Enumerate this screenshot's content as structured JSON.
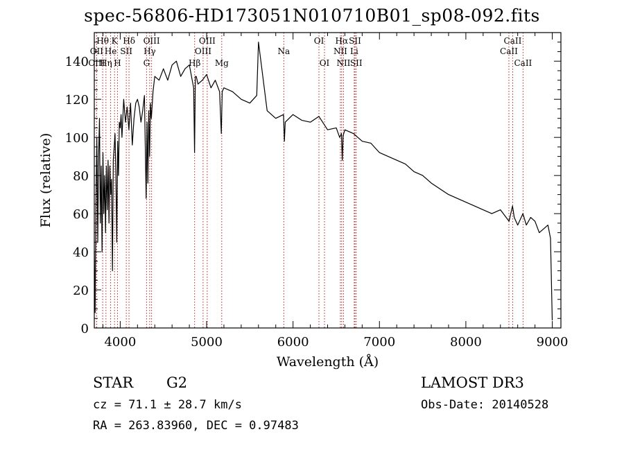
{
  "header": {
    "title": "spec-56806-HD173051N010710B01_sp08-092.fits"
  },
  "info": {
    "object_type": "STAR",
    "spectral_class": "G2",
    "survey": "LAMOST DR3",
    "cz": "cz = 71.1 ± 28.7 km/s",
    "obs_date": "Obs-Date: 20140528",
    "radec": "RA = 263.83960, DEC =    0.97483"
  },
  "chart_data": {
    "type": "line",
    "title": "spec-56806-HD173051N010710B01_sp08-092.fits",
    "xlabel": "Wavelength (Å)",
    "ylabel": "Flux (relative)",
    "xlim": [
      3700,
      9100
    ],
    "ylim": [
      0,
      155
    ],
    "xticks": [
      4000,
      5000,
      6000,
      7000,
      8000,
      9000
    ],
    "yticks": [
      0,
      20,
      40,
      60,
      80,
      100,
      120,
      140
    ],
    "grid": false,
    "series": [
      {
        "name": "spectrum",
        "color": "#000000",
        "x": [
          3700,
          3710,
          3720,
          3730,
          3740,
          3750,
          3760,
          3770,
          3780,
          3790,
          3800,
          3810,
          3820,
          3830,
          3840,
          3850,
          3860,
          3870,
          3880,
          3890,
          3900,
          3910,
          3920,
          3930,
          3940,
          3950,
          3960,
          3970,
          3980,
          3990,
          4000,
          4010,
          4020,
          4040,
          4060,
          4080,
          4100,
          4120,
          4140,
          4160,
          4180,
          4200,
          4220,
          4240,
          4260,
          4280,
          4300,
          4310,
          4320,
          4330,
          4340,
          4350,
          4360,
          4380,
          4400,
          4450,
          4500,
          4550,
          4600,
          4650,
          4700,
          4750,
          4800,
          4850,
          4860,
          4870,
          4880,
          4900,
          4950,
          5000,
          5050,
          5100,
          5150,
          5170,
          5180,
          5200,
          5300,
          5400,
          5500,
          5580,
          5600,
          5700,
          5800,
          5890,
          5900,
          5910,
          6000,
          6100,
          6200,
          6300,
          6400,
          6500,
          6540,
          6560,
          6570,
          6580,
          6600,
          6700,
          6800,
          6900,
          7000,
          7100,
          7200,
          7300,
          7400,
          7500,
          7600,
          7700,
          7800,
          7900,
          8000,
          8100,
          8200,
          8300,
          8400,
          8500,
          8540,
          8560,
          8600,
          8660,
          8700,
          8750,
          8800,
          8850,
          8900,
          8950,
          8980,
          9000
        ],
        "values": [
          40,
          8,
          70,
          100,
          45,
          90,
          110,
          55,
          85,
          40,
          92,
          60,
          80,
          50,
          85,
          62,
          88,
          55,
          85,
          70,
          78,
          30,
          88,
          95,
          102,
          80,
          45,
          98,
          80,
          108,
          105,
          112,
          100,
          120,
          108,
          116,
          104,
          118,
          96,
          110,
          118,
          120,
          116,
          108,
          114,
          122,
          68,
          108,
          76,
          114,
          90,
          118,
          110,
          124,
          132,
          130,
          136,
          130,
          138,
          140,
          132,
          136,
          138,
          126,
          92,
          132,
          132,
          128,
          130,
          133,
          126,
          130,
          124,
          102,
          124,
          126,
          124,
          120,
          118,
          122,
          150,
          114,
          110,
          112,
          98,
          108,
          112,
          109,
          108,
          111,
          104,
          105,
          100,
          102,
          88,
          101,
          104,
          102,
          98,
          97,
          92,
          90,
          88,
          86,
          82,
          80,
          76,
          73,
          70,
          68,
          66,
          64,
          62,
          60,
          62,
          56,
          64,
          58,
          54,
          60,
          54,
          58,
          56,
          50,
          52,
          54,
          47,
          4
        ]
      }
    ],
    "lines": [
      {
        "label": "Hθ",
        "wl": 3797,
        "row": 0
      },
      {
        "label": "OII",
        "wl": 3727,
        "row": 1
      },
      {
        "label": "OIII",
        "wl": 3727,
        "row": 2
      },
      {
        "label": "He",
        "wl": 3889,
        "row": 1
      },
      {
        "label": "Hη",
        "wl": 3835,
        "row": 2
      },
      {
        "label": "K",
        "wl": 3934,
        "row": 0
      },
      {
        "label": "H",
        "wl": 3969,
        "row": 2
      },
      {
        "label": "SII",
        "wl": 4070,
        "row": 1
      },
      {
        "label": "Hδ",
        "wl": 4102,
        "row": 0
      },
      {
        "label": "OIII",
        "wl": 4363,
        "row": 0
      },
      {
        "label": "Hγ",
        "wl": 4341,
        "row": 1
      },
      {
        "label": "G",
        "wl": 4305,
        "row": 2
      },
      {
        "label": "OIII",
        "wl": 5007,
        "row": 0
      },
      {
        "label": "OIII",
        "wl": 4959,
        "row": 1
      },
      {
        "label": "Hβ",
        "wl": 4861,
        "row": 2
      },
      {
        "label": "Mg",
        "wl": 5175,
        "row": 2
      },
      {
        "label": "Na",
        "wl": 5893,
        "row": 1
      },
      {
        "label": "OI",
        "wl": 6300,
        "row": 0
      },
      {
        "label": "OI",
        "wl": 6364,
        "row": 2
      },
      {
        "label": "Hα",
        "wl": 6563,
        "row": 0
      },
      {
        "label": "NII",
        "wl": 6548,
        "row": 1
      },
      {
        "label": "NII",
        "wl": 6584,
        "row": 2
      },
      {
        "label": "SII",
        "wl": 6717,
        "row": 0
      },
      {
        "label": "Li",
        "wl": 6708,
        "row": 1
      },
      {
        "label": "SII",
        "wl": 6731,
        "row": 2
      },
      {
        "label": "CaII",
        "wl": 8542,
        "row": 0
      },
      {
        "label": "CaII",
        "wl": 8498,
        "row": 1
      },
      {
        "label": "CaII",
        "wl": 8662,
        "row": 2
      }
    ]
  }
}
